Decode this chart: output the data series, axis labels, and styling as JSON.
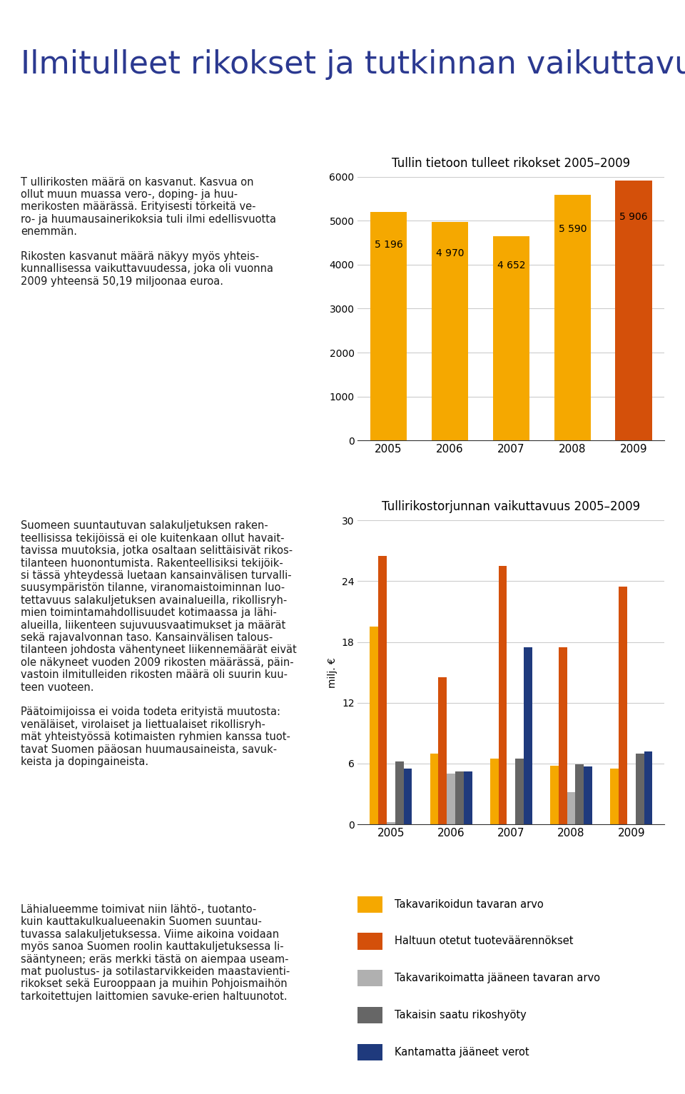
{
  "title_main": "Ilmitulleet rikokset ja tutkinnan vaikuttavuus",
  "title_main_color": "#2b3990",
  "title_main_fontsize": 32,
  "chart1_title": "Tullin tietoon tulleet rikokset 2005–2009",
  "chart1_years": [
    "2005",
    "2006",
    "2007",
    "2008",
    "2009"
  ],
  "chart1_values": [
    5196,
    4970,
    4652,
    5590,
    5906
  ],
  "chart1_colors": [
    "#f5a800",
    "#f5a800",
    "#f5a800",
    "#f5a800",
    "#d4500a"
  ],
  "chart1_ylim": [
    0,
    6000
  ],
  "chart1_yticks": [
    0,
    1000,
    2000,
    3000,
    4000,
    5000,
    6000
  ],
  "chart1_bar_labels": [
    "5 196",
    "4 970",
    "4 652",
    "5 590",
    "5 906"
  ],
  "chart2_title": "Tullirikostorjunnan vaikuttavuus 2005–2009",
  "chart2_ylabel": "milj. €",
  "chart2_years": [
    "2005",
    "2006",
    "2007",
    "2008",
    "2009"
  ],
  "chart2_series": {
    "takavarikoidun": [
      19.5,
      7.0,
      6.5,
      5.8,
      5.5
    ],
    "haltuun": [
      26.5,
      14.5,
      25.5,
      17.5,
      23.5
    ],
    "takavarikoimatta": [
      0.2,
      5.0,
      0.0,
      3.2,
      0.0
    ],
    "takaisin": [
      6.2,
      5.2,
      6.5,
      5.9,
      7.0
    ],
    "kantamatta": [
      5.5,
      5.2,
      17.5,
      5.7,
      7.2
    ]
  },
  "chart2_colors": {
    "takavarikoidun": "#f5a800",
    "haltuun": "#d4500a",
    "takavarikoimatta": "#b0b0b0",
    "takaisin": "#666666",
    "kantamatta": "#1f3a7d"
  },
  "chart2_ylim": [
    0,
    30
  ],
  "chart2_yticks": [
    0,
    6,
    12,
    18,
    24,
    30
  ],
  "chart2_legend": [
    {
      "label": "Takavarikoidun tavaran arvo",
      "color": "#f5a800"
    },
    {
      "label": "Haltuun otetut tuoteväärennökset",
      "color": "#d4500a"
    },
    {
      "label": "Takavarikoimatta jääneen tavaran arvo",
      "color": "#b0b0b0"
    },
    {
      "label": "Takaisin saatu rikoshyöty",
      "color": "#666666"
    },
    {
      "label": "Kantamatta jääneet verot",
      "color": "#1f3a7d"
    }
  ],
  "background_color": "#ffffff",
  "grid_color": "#cccccc",
  "text_color": "#1a1a1a"
}
